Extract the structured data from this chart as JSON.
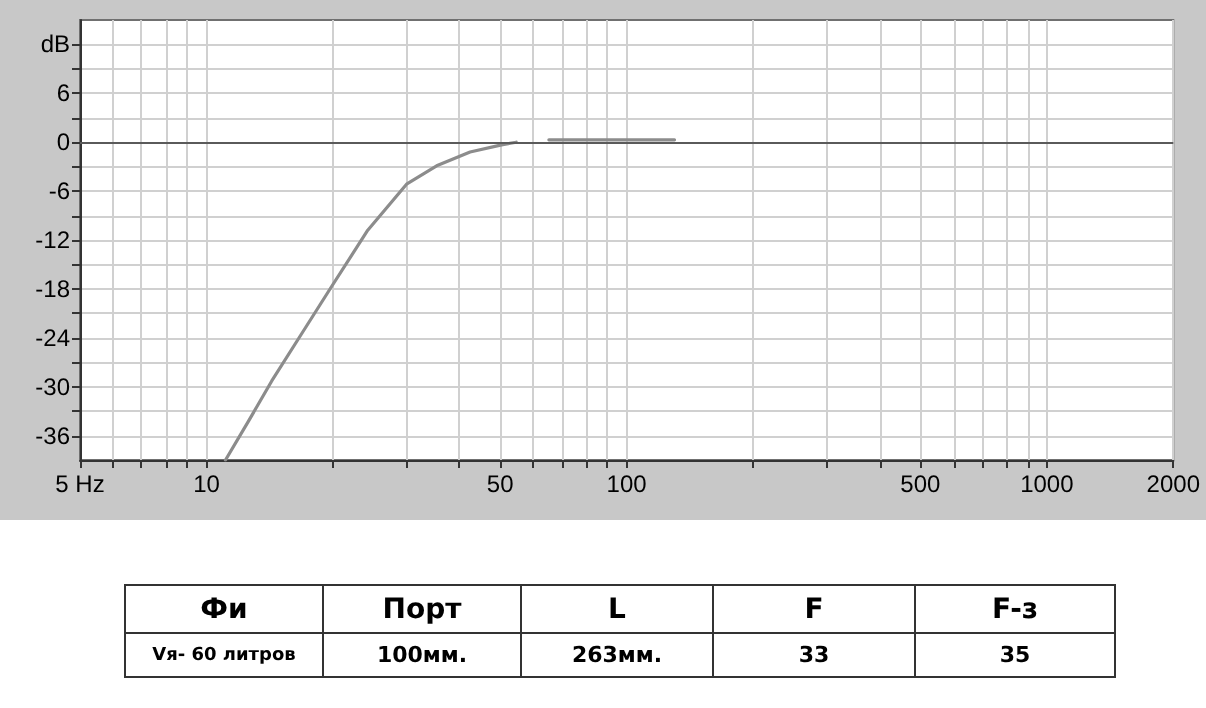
{
  "chart_data": {
    "type": "line",
    "x": [
      11.1,
      12.6,
      14.3,
      16.8,
      19.8,
      24.2,
      30.0,
      35.3,
      42.4,
      50.7,
      54.6,
      60,
      65.3,
      130
    ],
    "series": [
      {
        "color": "#8c8c8c",
        "values": [
          -39,
          -34.2,
          -29.3,
          -23.6,
          -17.8,
          -10.8,
          -5.1,
          -2.9,
          -1.2,
          -0.3,
          0,
          null,
          0.3,
          0.3
        ]
      }
    ],
    "log": "x",
    "xlim": [
      5,
      2000
    ],
    "xticks": [
      {
        "value": 5,
        "label": "5 Hz"
      },
      {
        "value": 6,
        "label": null
      },
      {
        "value": 7,
        "label": null
      },
      {
        "value": 8,
        "label": null
      },
      {
        "value": 9,
        "label": null
      },
      10,
      {
        "value": 20,
        "label": null
      },
      {
        "value": 30,
        "label": null
      },
      {
        "value": 40,
        "label": null
      },
      50,
      {
        "value": 60,
        "label": null
      },
      {
        "value": 70,
        "label": null
      },
      {
        "value": 80,
        "label": null
      },
      {
        "value": 90,
        "label": null
      },
      100,
      {
        "value": 200,
        "label": null
      },
      {
        "value": 300,
        "label": null
      },
      {
        "value": 400,
        "label": null
      },
      500,
      {
        "value": 600,
        "label": null
      },
      {
        "value": 700,
        "label": null
      },
      {
        "value": 800,
        "label": null
      },
      {
        "value": 900,
        "label": null
      },
      1000,
      2000
    ],
    "ylim": [
      -39,
      15
    ],
    "yticks": [
      -36,
      {
        "value": -33,
        "label": null
      },
      -30,
      {
        "value": -27,
        "label": null
      },
      -24,
      {
        "value": -21,
        "label": null
      },
      -18,
      {
        "value": -15,
        "label": null
      },
      -12,
      {
        "value": -9,
        "label": null
      },
      -6,
      {
        "value": -3,
        "label": null
      },
      0,
      {
        "value": 3,
        "label": null
      },
      6,
      {
        "value": 9,
        "label": null
      },
      {
        "value": 12,
        "label": "dB"
      }
    ],
    "grid": true,
    "marker": "none",
    "line_style": "solid",
    "ref_lines": [
      {
        "axis": "y",
        "value": 0,
        "color": "#5a5a5a"
      }
    ],
    "annotations": [
      "Фи",
      "Порт",
      "L",
      "F",
      "F-з",
      "Vя- 60 литров",
      "100мм.",
      "263мм.",
      "33",
      "35"
    ]
  }
}
